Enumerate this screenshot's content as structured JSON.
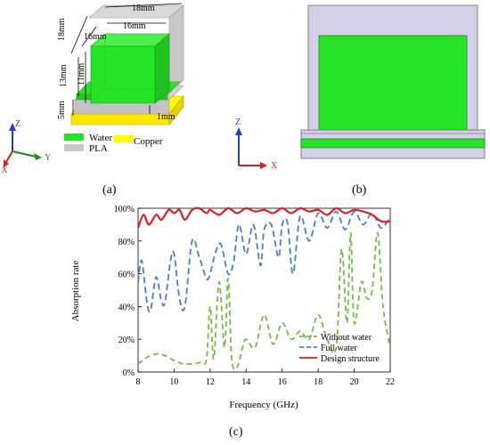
{
  "panel_a": {
    "dim_18mm_top": "18mm",
    "dim_16mm_top": "16mm",
    "dim_18mm_side": "18mm",
    "dim_16mm_side": "16mm",
    "dim_13mm": "13mm",
    "dim_11mm": "11mm",
    "dim_5mm": "5mm",
    "dim_1mm": "1mm",
    "legend": [
      {
        "label": "Water",
        "color": "#27e327"
      },
      {
        "label": "PLA",
        "color": "#c8c8c8"
      },
      {
        "label": "Copper",
        "color": "#ffff00"
      }
    ],
    "axes": {
      "z": "Z",
      "y": "Y",
      "x": "X"
    }
  },
  "panel_b": {
    "axes": {
      "z": "Z",
      "x": "X"
    }
  },
  "captions": {
    "a": "(a)",
    "b": "(b)",
    "c": "(c)"
  },
  "colors": {
    "water": "#27e327",
    "pla": "#c8c8c8",
    "pla_side": "#d4d0e8",
    "copper": "#ffff00"
  },
  "chart_data": {
    "type": "line",
    "xlabel": "Frequency (GHz)",
    "ylabel": "Absorption rate",
    "xlim": [
      8,
      22
    ],
    "ylim": [
      0,
      100
    ],
    "xticks": [
      8,
      10,
      12,
      14,
      16,
      18,
      20,
      22
    ],
    "xtick_labels": [
      "8",
      "10",
      "12",
      "14",
      "16",
      "18",
      "20",
      "22"
    ],
    "yticks": [
      0,
      20,
      40,
      60,
      80,
      100
    ],
    "ytick_labels": [
      "0%",
      "20%",
      "40%",
      "60%",
      "80%",
      "100%"
    ],
    "grid": false,
    "legend_position": "bottom-right",
    "series": [
      {
        "name": "Without water",
        "color": "#7ab648",
        "dash": "6,4",
        "x": [
          8,
          8.5,
          9,
          9.5,
          10,
          10.5,
          11,
          11.5,
          11.8,
          12,
          12.2,
          12.5,
          12.8,
          13,
          13.2,
          13.5,
          13.8,
          14,
          14.5,
          15,
          15.5,
          16,
          16.5,
          17,
          17.5,
          18,
          18.5,
          19,
          19.3,
          19.6,
          19.8,
          20,
          20.4,
          20.7,
          21,
          21.3,
          21.6,
          22
        ],
        "y": [
          5,
          9,
          11,
          10,
          7,
          5,
          5,
          6,
          8,
          40,
          8,
          55,
          15,
          57,
          8,
          3,
          15,
          20,
          15,
          35,
          17,
          30,
          20,
          25,
          20,
          35,
          20,
          15,
          75,
          30,
          85,
          30,
          55,
          45,
          50,
          85,
          40,
          15
        ]
      },
      {
        "name": "Full water",
        "color": "#4a7fc0",
        "dash": "7,4",
        "x": [
          8,
          8.2,
          8.5,
          8.7,
          9,
          9.3,
          9.5,
          9.8,
          10,
          10.3,
          10.6,
          11,
          11.4,
          11.8,
          12,
          12.3,
          12.6,
          13,
          13.3,
          13.6,
          14,
          14.4,
          14.8,
          15,
          15.4,
          15.8,
          16,
          16.3,
          16.6,
          17,
          17.5,
          18,
          18.5,
          19,
          19.5,
          20,
          20.5,
          21,
          21.5,
          22
        ],
        "y": [
          55,
          68,
          42,
          38,
          58,
          43,
          43,
          68,
          72,
          45,
          40,
          80,
          70,
          57,
          60,
          73,
          78,
          60,
          67,
          90,
          72,
          90,
          65,
          87,
          90,
          70,
          90,
          91,
          60,
          95,
          80,
          97,
          88,
          98,
          87,
          98,
          90,
          97,
          88,
          95
        ]
      },
      {
        "name": "Design structure",
        "color": "#e02020",
        "dash": "",
        "x": [
          8,
          8.3,
          8.6,
          9,
          9.3,
          9.7,
          10,
          10.3,
          10.6,
          11,
          11.4,
          11.8,
          12,
          12.5,
          13,
          13.5,
          14,
          14.5,
          15,
          15.5,
          16,
          16.5,
          17,
          17.5,
          18,
          18.5,
          19,
          19.5,
          20,
          20.5,
          21,
          21.5,
          22
        ],
        "y": [
          88,
          96,
          90,
          96,
          93,
          99,
          97,
          99,
          93,
          99,
          100,
          97,
          99,
          96,
          100,
          97,
          100,
          98,
          99,
          97,
          100,
          97,
          100,
          98,
          99,
          96,
          100,
          97,
          99,
          98,
          96,
          92,
          92
        ]
      }
    ]
  }
}
